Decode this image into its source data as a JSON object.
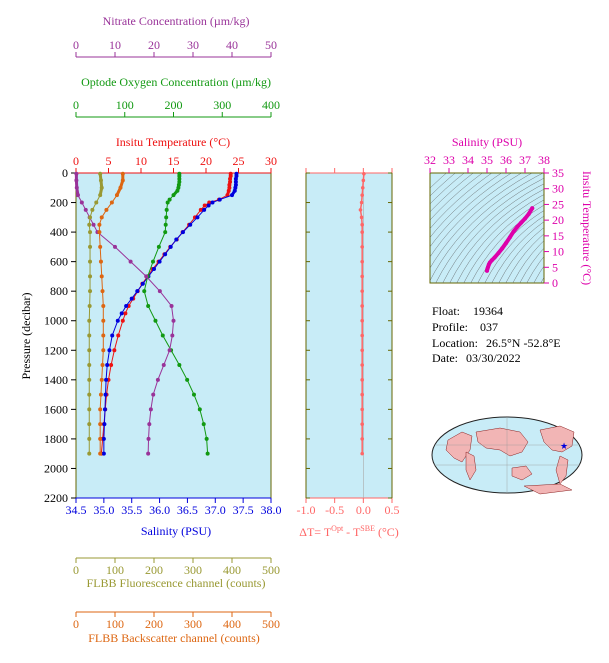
{
  "colors": {
    "nitrate": "#993399",
    "oxygen": "#119911",
    "temperature": "#ee1111",
    "salinity": "#0000dd",
    "fluorescence": "#999933",
    "backscatter": "#dd6611",
    "delta_t": "#ff6666",
    "ts_salinity": "#dd00aa",
    "panel_bg": "#c8ecf7",
    "frame": "#666600"
  },
  "info": {
    "float_label": "Float:",
    "float_value": "19364",
    "profile_label": "Profile:",
    "profile_value": "037",
    "location_label": "Location:",
    "location_value": "26.5°N  -52.8°E",
    "date_label": "Date:",
    "date_value": "03/30/2022"
  },
  "chart_data": [
    {
      "type": "line",
      "name": "main-profile",
      "ylabel": "Pressure (decibar)",
      "ylim": [
        0,
        2200
      ],
      "yticks": [
        0,
        200,
        400,
        600,
        800,
        1000,
        1200,
        1400,
        1600,
        1800,
        2000,
        2200
      ],
      "axes": {
        "nitrate": {
          "label": "Nitrate Concentration (µm/kg)",
          "lim": [
            0,
            50
          ],
          "ticks": [
            0,
            10,
            20,
            30,
            40,
            50
          ]
        },
        "oxygen": {
          "label": "Optode Oxygen Concentration (µm/kg)",
          "lim": [
            0,
            400
          ],
          "ticks": [
            0,
            100,
            200,
            300,
            400
          ]
        },
        "temperature": {
          "label": "Insitu Temperature (°C)",
          "lim": [
            0,
            30
          ],
          "ticks": [
            0,
            5,
            10,
            15,
            20,
            25,
            30
          ]
        },
        "salinity": {
          "label": "Salinity (PSU)",
          "lim": [
            34.5,
            38.0
          ],
          "ticks": [
            34.5,
            35.0,
            35.5,
            36.0,
            36.5,
            37.0,
            37.5,
            38.0
          ],
          "tick_labels": [
            "34.5",
            "35.0",
            "35.5",
            "36.0",
            "36.5",
            "37.0",
            "37.5",
            "38.0"
          ]
        },
        "fluorescence": {
          "label": "FLBB Fluorescence channel (counts)",
          "lim": [
            0,
            500
          ],
          "ticks": [
            0,
            100,
            200,
            300,
            400,
            500
          ]
        },
        "backscatter": {
          "label": "FLBB Backscatter channel (counts)",
          "lim": [
            0,
            500
          ],
          "ticks": [
            0,
            100,
            200,
            300,
            400,
            500
          ]
        }
      },
      "series": [
        {
          "key": "temperature",
          "y": [
            5,
            20,
            40,
            60,
            80,
            100,
            120,
            150,
            180,
            200,
            220,
            250,
            300,
            350,
            400,
            450,
            500,
            550,
            600,
            650,
            700,
            750,
            800,
            850,
            900,
            950,
            1000,
            1100,
            1200,
            1300,
            1400,
            1500,
            1600,
            1700,
            1800,
            1900
          ],
          "x": [
            23.8,
            23.8,
            23.7,
            23.7,
            23.6,
            23.6,
            23.5,
            23.3,
            22.0,
            20.5,
            19.8,
            19.2,
            18.3,
            17.4,
            16.4,
            15.5,
            14.5,
            13.6,
            12.7,
            11.8,
            11.0,
            10.2,
            9.5,
            8.8,
            8.1,
            7.6,
            7.2,
            6.5,
            5.9,
            5.4,
            5.0,
            4.7,
            4.5,
            4.3,
            4.1,
            3.9
          ]
        },
        {
          "key": "salinity",
          "y": [
            5,
            20,
            40,
            60,
            80,
            100,
            120,
            150,
            180,
            200,
            220,
            250,
            300,
            350,
            400,
            450,
            500,
            550,
            600,
            650,
            700,
            750,
            800,
            850,
            900,
            950,
            1000,
            1100,
            1200,
            1300,
            1400,
            1500,
            1600,
            1700,
            1800,
            1900
          ],
          "x": [
            37.38,
            37.38,
            37.37,
            37.37,
            37.37,
            37.36,
            37.35,
            37.3,
            37.08,
            36.95,
            36.88,
            36.8,
            36.68,
            36.55,
            36.42,
            36.3,
            36.2,
            36.1,
            36.0,
            35.9,
            35.8,
            35.7,
            35.6,
            35.5,
            35.4,
            35.32,
            35.25,
            35.15,
            35.1,
            35.06,
            35.04,
            35.03,
            35.02,
            35.01,
            35.0,
            35.0
          ]
        },
        {
          "key": "oxygen",
          "y": [
            5,
            20,
            40,
            60,
            80,
            100,
            120,
            150,
            180,
            200,
            250,
            300,
            350,
            400,
            500,
            600,
            700,
            800,
            900,
            1000,
            1100,
            1200,
            1300,
            1400,
            1500,
            1600,
            1700,
            1800,
            1900
          ],
          "x": [
            212,
            212,
            212,
            212,
            211,
            210,
            208,
            200,
            192,
            188,
            186,
            185,
            184,
            183,
            170,
            158,
            147,
            140,
            148,
            163,
            178,
            195,
            212,
            228,
            242,
            254,
            262,
            268,
            270
          ]
        },
        {
          "key": "nitrate",
          "y": [
            5,
            50,
            100,
            150,
            200,
            250,
            300,
            350,
            400,
            500,
            600,
            700,
            800,
            900,
            1000,
            1100,
            1200,
            1300,
            1400,
            1500,
            1600,
            1700,
            1800,
            1900
          ],
          "x": [
            0.1,
            0.1,
            0.2,
            0.5,
            1.5,
            2.5,
            3.5,
            4.5,
            5.5,
            10.0,
            14.0,
            18.0,
            21.5,
            24.5,
            25.0,
            24.7,
            24.0,
            22.5,
            21.0,
            19.8,
            19.2,
            18.8,
            18.6,
            18.5
          ]
        },
        {
          "key": "fluorescence",
          "y": [
            5,
            50,
            100,
            150,
            200,
            250,
            300,
            350,
            400,
            500,
            600,
            700,
            800,
            900,
            1000,
            1100,
            1200,
            1300,
            1400,
            1500,
            1600,
            1700,
            1800,
            1900
          ],
          "x": [
            62,
            64,
            66,
            62,
            52,
            42,
            36,
            34,
            36,
            36,
            36,
            36,
            36,
            35,
            34,
            34,
            34,
            34,
            34,
            34,
            34,
            34,
            34,
            34
          ]
        },
        {
          "key": "backscatter",
          "y": [
            5,
            50,
            100,
            150,
            200,
            250,
            300,
            350,
            400,
            500,
            600,
            700,
            800,
            900,
            1000,
            1100,
            1200,
            1300,
            1400,
            1500,
            1600,
            1700,
            1800,
            1900
          ],
          "x": [
            120,
            120,
            114,
            105,
            92,
            78,
            66,
            60,
            60,
            62,
            64,
            66,
            68,
            70,
            70,
            70,
            70,
            68,
            66,
            64,
            62,
            62,
            62,
            62
          ]
        }
      ]
    },
    {
      "type": "line",
      "name": "delta-t",
      "xlabel": "ΔT= T^Opt - T^SBE (°C)",
      "xlim": [
        -1.0,
        0.5
      ],
      "xticks": [
        -1.0,
        -0.5,
        0.0,
        0.5
      ],
      "xtick_labels": [
        "-1.0",
        "-0.5",
        "0.0",
        "0.5"
      ],
      "ylim": [
        0,
        2200
      ],
      "y": [
        5,
        50,
        100,
        150,
        200,
        250,
        300,
        350,
        400,
        500,
        600,
        700,
        800,
        900,
        1000,
        1100,
        1200,
        1300,
        1400,
        1500,
        1600,
        1700,
        1800,
        1900
      ],
      "x": [
        0.01,
        0.0,
        -0.01,
        -0.02,
        -0.03,
        -0.05,
        -0.03,
        -0.02,
        -0.02,
        -0.02,
        -0.02,
        -0.02,
        -0.02,
        -0.02,
        -0.02,
        -0.02,
        -0.02,
        -0.02,
        -0.02,
        -0.02,
        -0.02,
        -0.02,
        -0.02,
        -0.02
      ]
    },
    {
      "type": "scatter",
      "name": "ts-diagram",
      "xlabel": "Salinity (PSU)",
      "ylabel": "Insitu Temperature (°C)",
      "xlim": [
        32,
        38
      ],
      "ylim": [
        0,
        35
      ],
      "xticks": [
        32,
        33,
        34,
        35,
        36,
        37,
        38
      ],
      "yticks": [
        0,
        5,
        10,
        15,
        20,
        25,
        30,
        35
      ],
      "x": [
        37.38,
        37.2,
        37.0,
        36.8,
        36.6,
        36.4,
        36.2,
        36.0,
        35.8,
        35.6,
        35.4,
        35.25,
        35.15,
        35.1,
        35.05,
        35.02,
        35.0
      ],
      "y": [
        23.8,
        22.0,
        20.5,
        19.2,
        17.9,
        16.4,
        14.5,
        12.7,
        11.0,
        9.5,
        8.1,
        7.2,
        6.5,
        5.9,
        5.0,
        4.5,
        3.9
      ]
    }
  ]
}
